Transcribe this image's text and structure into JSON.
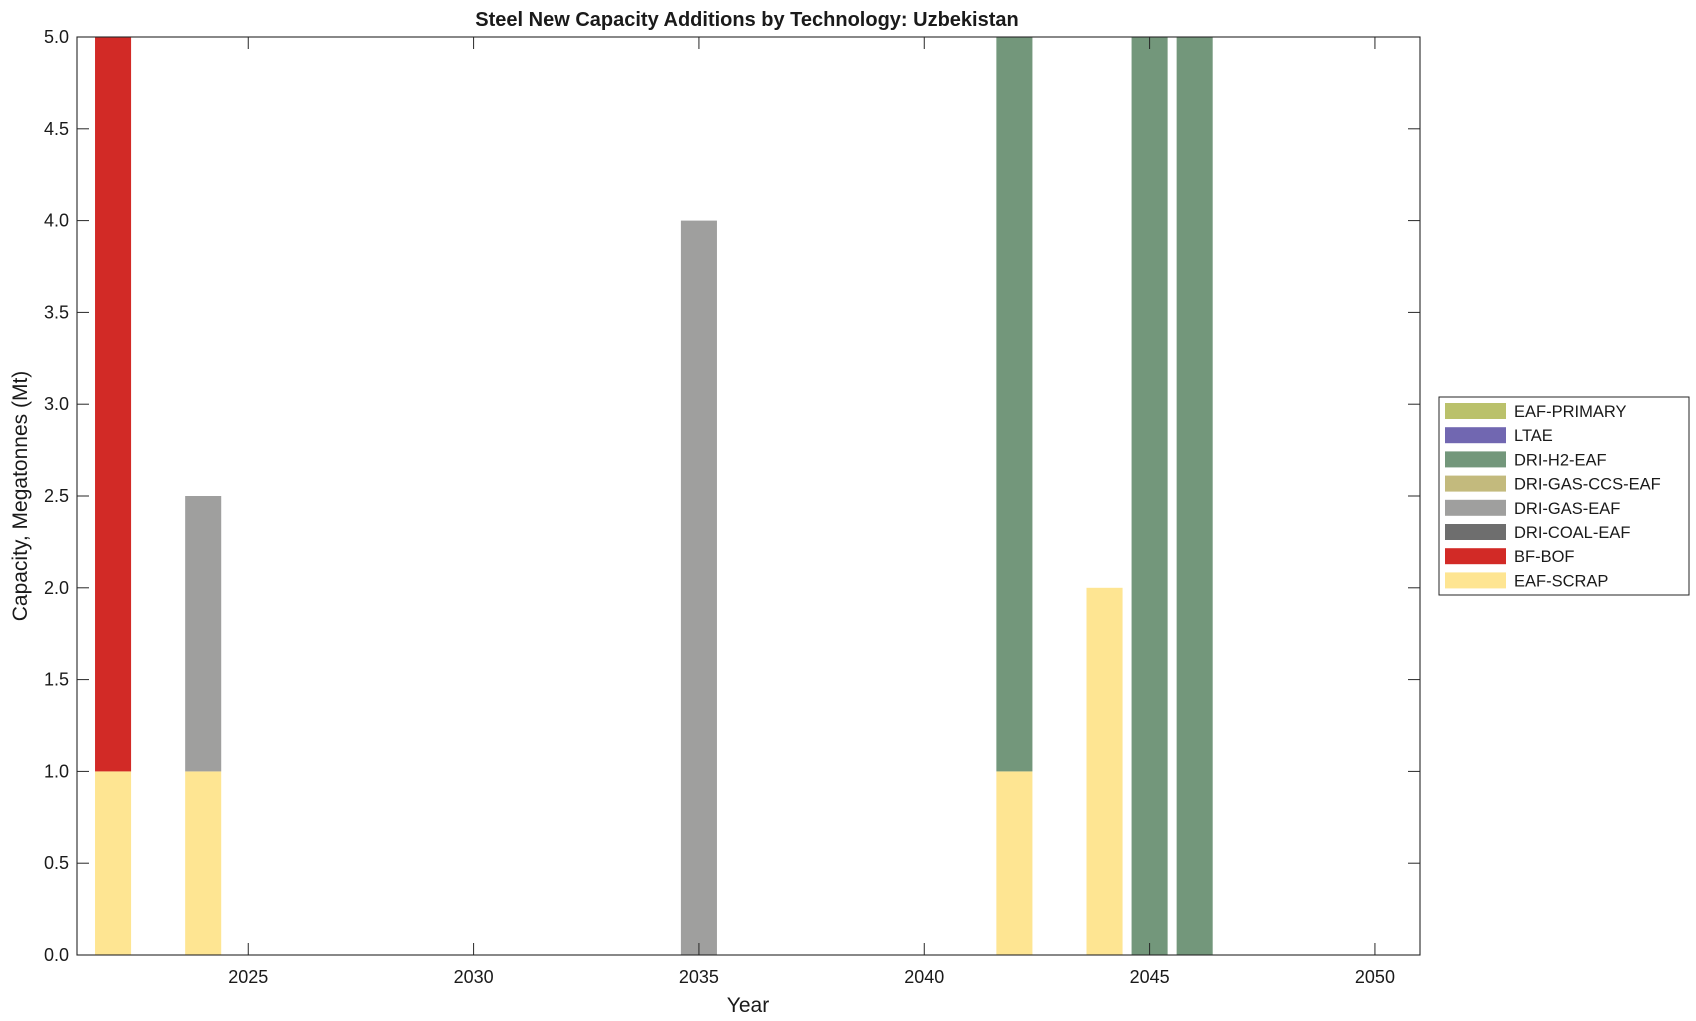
{
  "chart_data": {
    "type": "bar",
    "stacked": true,
    "title": "Steel New Capacity Additions by Technology: Uzbekistan",
    "xlabel": "Year",
    "ylabel": "Capacity, Megatonnes (Mt)",
    "xlim": [
      2021.2,
      2051
    ],
    "ylim": [
      0,
      5
    ],
    "x_ticks": [
      2025,
      2030,
      2035,
      2040,
      2045,
      2050
    ],
    "y_ticks": [
      0,
      0.5,
      1,
      1.5,
      2,
      2.5,
      3,
      3.5,
      4,
      4.5,
      5
    ],
    "y_tick_labels": [
      "0.0",
      "0.5",
      "1.0",
      "1.5",
      "2.0",
      "2.5",
      "3.0",
      "3.5",
      "4.0",
      "4.5",
      "5.0"
    ],
    "grid": false,
    "legend_position": "outside-right",
    "categories": [
      2022,
      2024,
      2035,
      2042,
      2044,
      2045,
      2046
    ],
    "series": [
      {
        "name": "EAF-SCRAP",
        "color": "#fee592",
        "values": [
          1,
          1,
          0,
          1,
          2,
          0,
          0
        ]
      },
      {
        "name": "BF-BOF",
        "color": "#d22a26",
        "values": [
          4,
          0,
          0,
          0,
          0,
          0,
          0
        ]
      },
      {
        "name": "DRI-COAL-EAF",
        "color": "#6e6e6e",
        "values": [
          0,
          0,
          0,
          0,
          0,
          0,
          0
        ]
      },
      {
        "name": "DRI-GAS-EAF",
        "color": "#9f9f9e",
        "values": [
          0,
          1.5,
          4,
          0,
          0,
          0,
          0
        ]
      },
      {
        "name": "DRI-GAS-CCS-EAF",
        "color": "#c3ba7d",
        "values": [
          0,
          0,
          0,
          0,
          0,
          0,
          0
        ]
      },
      {
        "name": "DRI-H2-EAF",
        "color": "#73977b",
        "values": [
          0,
          0,
          0,
          4,
          0,
          5,
          5
        ]
      },
      {
        "name": "LTAE",
        "color": "#7167b1",
        "values": [
          0,
          0,
          0,
          0,
          0,
          0,
          0
        ]
      },
      {
        "name": "EAF-PRIMARY",
        "color": "#bac16b",
        "values": [
          0,
          0,
          0,
          0,
          0,
          0,
          0
        ]
      }
    ],
    "legend_order": [
      "EAF-PRIMARY",
      "LTAE",
      "DRI-H2-EAF",
      "DRI-GAS-CCS-EAF",
      "DRI-GAS-EAF",
      "DRI-COAL-EAF",
      "BF-BOF",
      "EAF-SCRAP"
    ]
  }
}
